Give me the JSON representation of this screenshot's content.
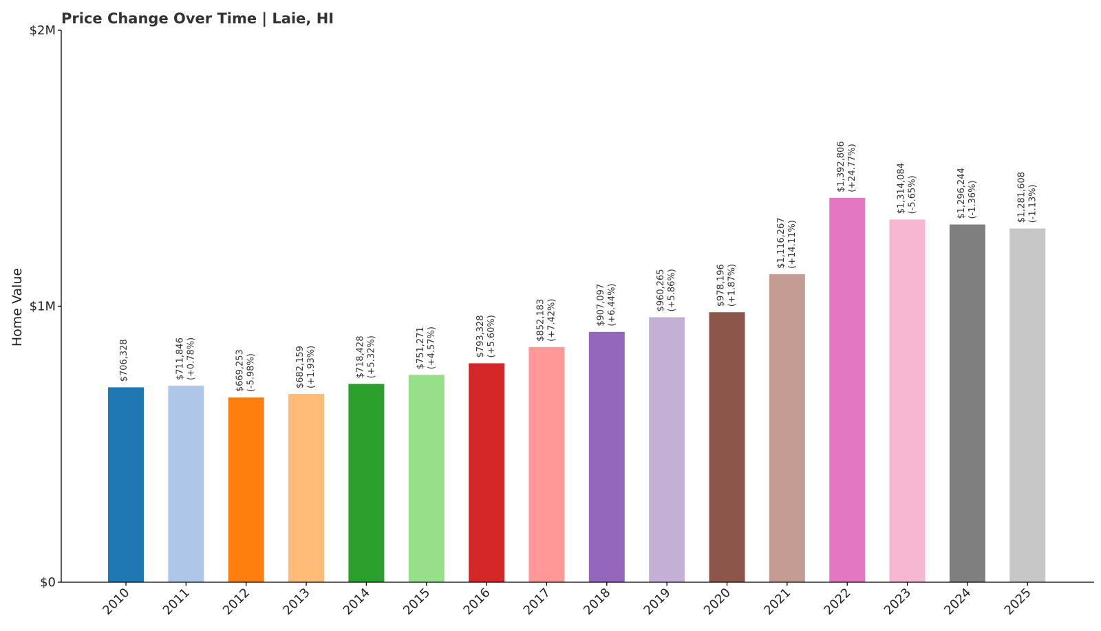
{
  "chart_data": {
    "type": "bar",
    "title": "Price Change Over Time | Laie, HI",
    "xlabel": "",
    "ylabel": "Home Value",
    "ylim": [
      0,
      2000000
    ],
    "yticks": [
      {
        "value": 0,
        "label": "$0"
      },
      {
        "value": 1000000,
        "label": "$1M"
      },
      {
        "value": 2000000,
        "label": "$2M"
      }
    ],
    "categories": [
      "2010",
      "2011",
      "2012",
      "2013",
      "2014",
      "2015",
      "2016",
      "2017",
      "2018",
      "2019",
      "2020",
      "2021",
      "2022",
      "2023",
      "2024",
      "2025"
    ],
    "values": [
      706328,
      711846,
      669253,
      682159,
      718428,
      751271,
      793328,
      852183,
      907097,
      960265,
      978196,
      1116267,
      1392806,
      1314084,
      1296244,
      1281608
    ],
    "value_labels": [
      "$706,328",
      "$711,846",
      "$669,253",
      "$682,159",
      "$718,428",
      "$751,271",
      "$793,328",
      "$852,183",
      "$907,097",
      "$960,265",
      "$978,196",
      "$1,116,267",
      "$1,392,806",
      "$1,314,084",
      "$1,296,244",
      "$1,281,608"
    ],
    "change_labels": [
      "",
      "(+0.78%)",
      "(-5.98%)",
      "(+1.93%)",
      "(+5.32%)",
      "(+4.57%)",
      "(+5.60%)",
      "(+7.42%)",
      "(+6.44%)",
      "(+5.86%)",
      "(+1.87%)",
      "(+14.11%)",
      "(+24.77%)",
      "(-5.65%)",
      "(-1.36%)",
      "(-1.13%)"
    ],
    "colors": [
      "#1f77b4",
      "#aec7e8",
      "#ff7f0e",
      "#ffbb78",
      "#2ca02c",
      "#98df8a",
      "#d62728",
      "#ff9896",
      "#9467bd",
      "#c5b0d5",
      "#8c564b",
      "#c49c94",
      "#e377c2",
      "#f7b6d2",
      "#7f7f7f",
      "#c7c7c7"
    ],
    "grid": false,
    "legend": "none"
  }
}
